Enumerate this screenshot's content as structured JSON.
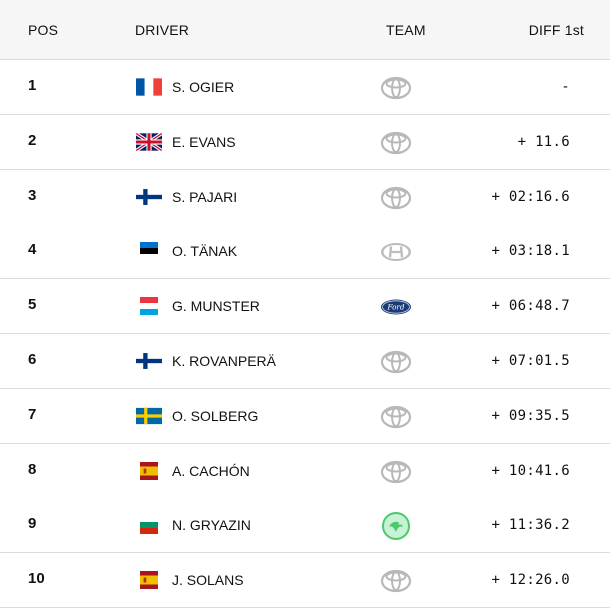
{
  "headers": {
    "pos": "POS",
    "driver": "DRIVER",
    "team": "TEAM",
    "diff": "DIFF 1st"
  },
  "rows": [
    {
      "pos": "1",
      "flag": "fr",
      "driver": "S. OGIER",
      "team": "toyota",
      "diff": "-"
    },
    {
      "pos": "2",
      "flag": "gb",
      "driver": "E. EVANS",
      "team": "toyota",
      "diff": "+ 11.6"
    },
    {
      "pos": "3",
      "flag": "fi",
      "driver": "S. PAJARI",
      "team": "toyota",
      "diff": "+ 02:16.6"
    },
    {
      "pos": "4",
      "flag": "ee",
      "driver": "O. TÄNAK",
      "team": "hyundai",
      "diff": "+ 03:18.1"
    },
    {
      "pos": "5",
      "flag": "lu",
      "driver": "G. MUNSTER",
      "team": "ford",
      "diff": "+ 06:48.7"
    },
    {
      "pos": "6",
      "flag": "fi",
      "driver": "K. ROVANPERÄ",
      "team": "toyota",
      "diff": "+ 07:01.5"
    },
    {
      "pos": "7",
      "flag": "se",
      "driver": "O. SOLBERG",
      "team": "toyota",
      "diff": "+ 09:35.5"
    },
    {
      "pos": "8",
      "flag": "es",
      "driver": "A. CACHÓN",
      "team": "toyota",
      "diff": "+ 10:41.6"
    },
    {
      "pos": "9",
      "flag": "bg",
      "driver": "N. GRYAZIN",
      "team": "skoda",
      "diff": "+ 11:36.2"
    },
    {
      "pos": "10",
      "flag": "es",
      "driver": "J. SOLANS",
      "team": "toyota",
      "diff": "+ 12:26.0"
    }
  ]
}
